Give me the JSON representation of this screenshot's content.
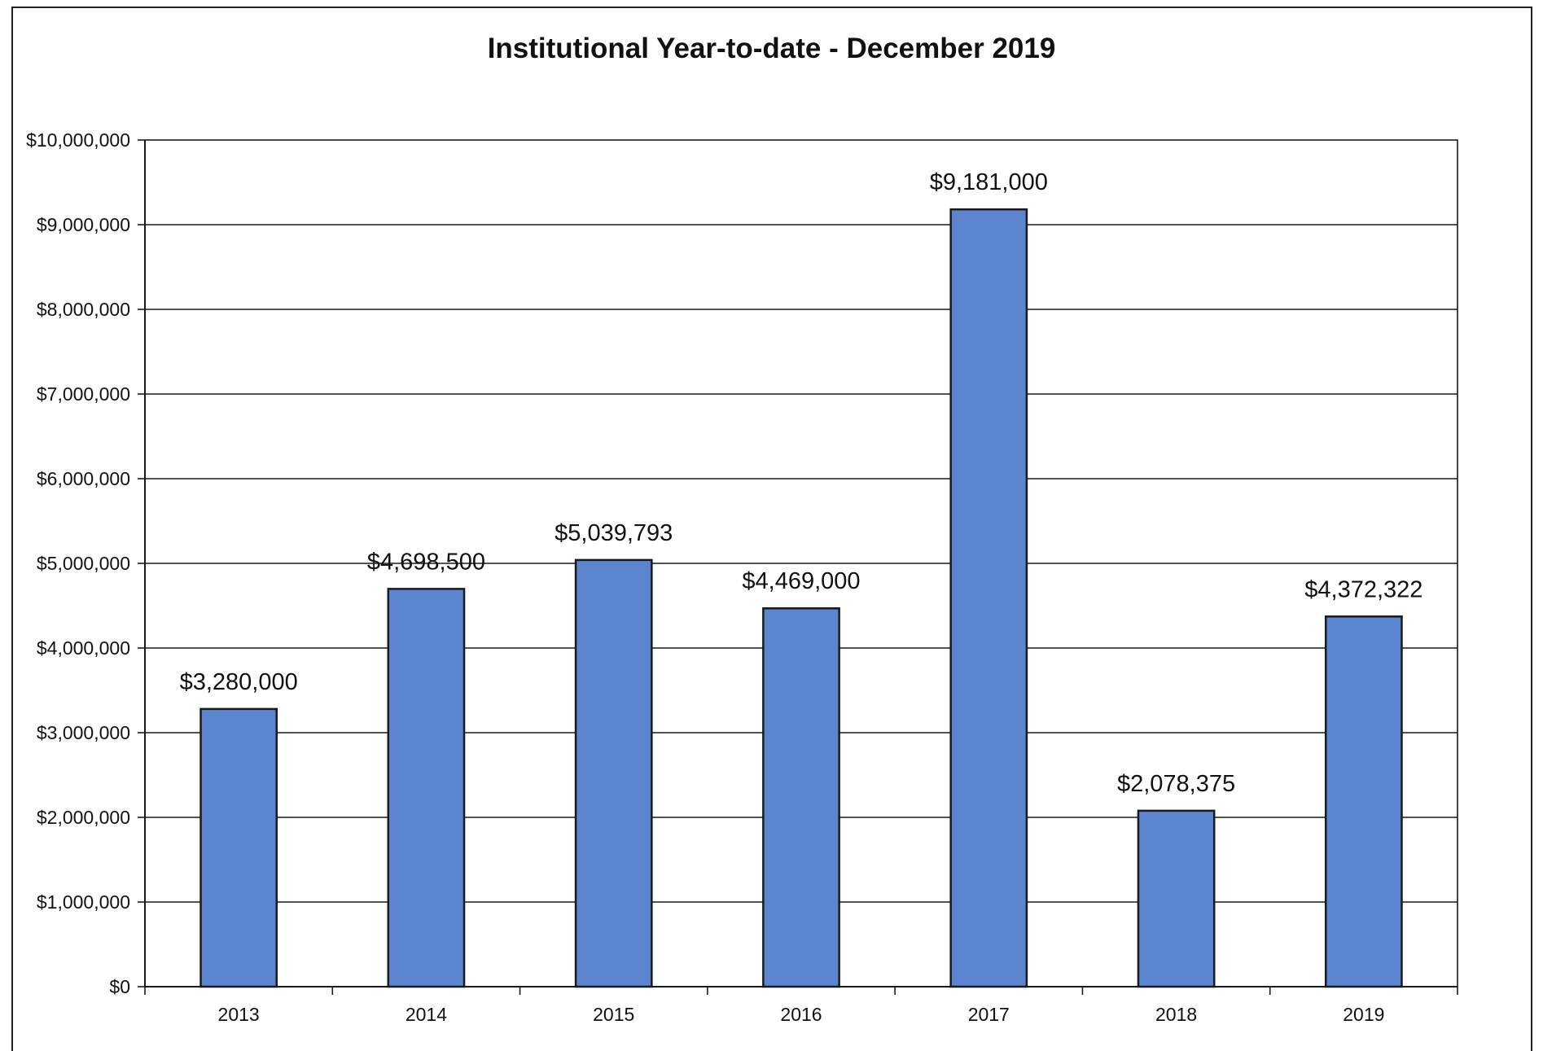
{
  "chart_data": {
    "type": "bar",
    "title": "Institutional Year-to-date - December 2019",
    "xlabel": "",
    "ylabel": "",
    "categories": [
      "2013",
      "2014",
      "2015",
      "2016",
      "2017",
      "2018",
      "2019"
    ],
    "values": [
      3280000,
      4698500,
      5039793,
      4469000,
      9181000,
      2078375,
      4372322
    ],
    "data_labels": [
      "$3,280,000",
      "$4,698,500",
      "$5,039,793",
      "$4,469,000",
      "$9,181,000",
      "$2,078,375",
      "$4,372,322"
    ],
    "ylim": [
      0,
      10000000
    ],
    "yticks": [
      0,
      1000000,
      2000000,
      3000000,
      4000000,
      5000000,
      6000000,
      7000000,
      8000000,
      9000000,
      10000000
    ],
    "ytick_labels": [
      "$0",
      "$1,000,000",
      "$2,000,000",
      "$3,000,000",
      "$4,000,000",
      "$5,000,000",
      "$6,000,000",
      "$7,000,000",
      "$8,000,000",
      "$9,000,000",
      "$10,000,000"
    ],
    "grid": true,
    "legend": "none",
    "colors": {
      "bar_fill": "#5b86cf",
      "bar_stroke": "#1a1a1a",
      "gridline": "#1a1a1a"
    }
  }
}
